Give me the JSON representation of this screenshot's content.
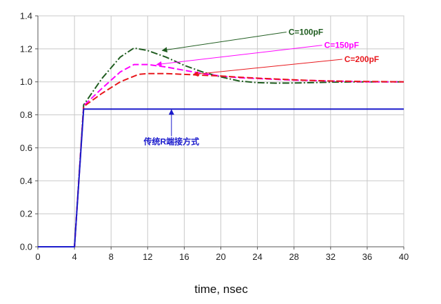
{
  "chart_data": {
    "type": "line",
    "title": "",
    "xlabel": "time, nsec",
    "ylabel": "",
    "xlim": [
      0,
      40
    ],
    "ylim": [
      0.0,
      1.4
    ],
    "xticks": [
      0,
      4,
      8,
      12,
      16,
      20,
      24,
      28,
      32,
      36,
      40
    ],
    "yticks": [
      0.0,
      0.2,
      0.4,
      0.6,
      0.8,
      1.0,
      1.2,
      1.4
    ],
    "xtick_labels": [
      "0",
      "4",
      "8",
      "12",
      "16",
      "20",
      "24",
      "28",
      "32",
      "36",
      "40"
    ],
    "ytick_labels": [
      "0.0",
      "0.2",
      "0.4",
      "0.6",
      "0.8",
      "1.0",
      "1.2",
      "1.4"
    ],
    "grid": true,
    "series": [
      {
        "name": "C=100pF",
        "color": "#1f5c1f",
        "dash": "dash-dot",
        "x": [
          0,
          4,
          5,
          7,
          9,
          10.5,
          12,
          14,
          16,
          18,
          20,
          22,
          24,
          26,
          28,
          30,
          32,
          36,
          40
        ],
        "y": [
          0,
          0,
          0.86,
          1.02,
          1.15,
          1.205,
          1.19,
          1.15,
          1.1,
          1.06,
          1.03,
          1.005,
          0.995,
          0.992,
          0.993,
          0.995,
          0.998,
          1.0,
          1.0
        ]
      },
      {
        "name": "C=150pF",
        "color": "#ff00ff",
        "dash": "dash",
        "x": [
          0,
          4,
          5,
          7,
          9,
          10.5,
          12,
          14,
          16,
          18,
          20,
          22,
          24,
          26,
          28,
          30,
          32,
          36,
          40
        ],
        "y": [
          0,
          0,
          0.855,
          0.96,
          1.06,
          1.105,
          1.105,
          1.09,
          1.07,
          1.05,
          1.035,
          1.025,
          1.02,
          1.015,
          1.01,
          1.008,
          1.005,
          1.0,
          1.0
        ]
      },
      {
        "name": "C=200pF",
        "color": "#e8161b",
        "dash": "dash",
        "x": [
          0,
          4,
          5,
          7,
          9,
          11,
          12,
          14,
          16,
          18,
          20,
          22,
          24,
          26,
          28,
          30,
          32,
          36,
          40
        ],
        "y": [
          0,
          0,
          0.85,
          0.93,
          1.0,
          1.045,
          1.05,
          1.05,
          1.045,
          1.04,
          1.035,
          1.028,
          1.022,
          1.017,
          1.012,
          1.008,
          1.005,
          1.002,
          1.0
        ]
      },
      {
        "name": "传统R端接方式",
        "color": "#1a1acc",
        "dash": "solid",
        "x": [
          0,
          4,
          5,
          40
        ],
        "y": [
          0,
          0,
          0.835,
          0.835
        ]
      }
    ],
    "annotations": [
      {
        "text": "C=100pF",
        "color": "#1f5c1f",
        "label_x": 29.3,
        "label_y": 1.285,
        "arrow_x": 13.6,
        "arrow_y": 1.19
      },
      {
        "text": "C=150pF",
        "color": "#ff00ff",
        "label_x": 33.2,
        "label_y": 1.205,
        "arrow_x": 13.0,
        "arrow_y": 1.105
      },
      {
        "text": "C=200pF",
        "color": "#e8161b",
        "label_x": 35.4,
        "label_y": 1.12,
        "arrow_x": 17.0,
        "arrow_y": 1.045
      },
      {
        "text": "传统R端接方式",
        "color": "#1a1acc",
        "label_x": 14.6,
        "label_y": 0.62,
        "arrow_x": 14.6,
        "arrow_y": 0.83
      }
    ]
  }
}
